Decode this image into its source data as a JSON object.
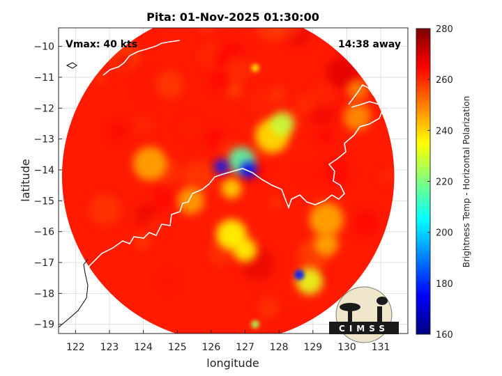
{
  "chart_data": {
    "type": "heatmap",
    "title": "Pita: 01-Nov-2025 01:30:00",
    "xlabel": "longitude",
    "ylabel": "latitude",
    "xlim": [
      121.5,
      131.8
    ],
    "ylim": [
      -19.3,
      -9.4
    ],
    "xticks": [
      122,
      123,
      124,
      125,
      126,
      127,
      128,
      129,
      130,
      131
    ],
    "yticks": [
      -10,
      -11,
      -12,
      -13,
      -14,
      -15,
      -16,
      -17,
      -18,
      -19
    ],
    "grid": true,
    "annotations": {
      "left": "Vmax: 40 kts",
      "right": "14:38 away"
    },
    "colorbar": {
      "label": "Brightness Temp - Horizontal Polarization",
      "range": [
        160,
        280
      ],
      "ticks": [
        280,
        260,
        240,
        220,
        200,
        180,
        160
      ],
      "colormap": "jet"
    },
    "swath": {
      "center": [
        126.5,
        -14.2
      ],
      "radius_deg": 4.9,
      "background_bt": 262
    },
    "features": [
      {
        "lon": 127.1,
        "lat": -14.0,
        "bt": 175,
        "radius": 0.25
      },
      {
        "lon": 126.3,
        "lat": -13.9,
        "bt": 178,
        "radius": 0.22
      },
      {
        "lon": 126.9,
        "lat": -13.7,
        "bt": 215,
        "radius": 0.4
      },
      {
        "lon": 128.6,
        "lat": -17.4,
        "bt": 178,
        "radius": 0.15
      },
      {
        "lon": 128.1,
        "lat": -12.5,
        "bt": 228,
        "radius": 0.35
      },
      {
        "lon": 127.8,
        "lat": -12.9,
        "bt": 238,
        "radius": 0.5
      },
      {
        "lon": 126.6,
        "lat": -16.1,
        "bt": 235,
        "radius": 0.45
      },
      {
        "lon": 127.0,
        "lat": -16.6,
        "bt": 236,
        "radius": 0.35
      },
      {
        "lon": 128.9,
        "lat": -17.6,
        "bt": 232,
        "radius": 0.4
      },
      {
        "lon": 129.4,
        "lat": -15.6,
        "bt": 245,
        "radius": 0.5
      },
      {
        "lon": 129.4,
        "lat": -16.4,
        "bt": 245,
        "radius": 0.35
      },
      {
        "lon": 124.2,
        "lat": -13.8,
        "bt": 245,
        "radius": 0.5
      },
      {
        "lon": 125.4,
        "lat": -15.0,
        "bt": 246,
        "radius": 0.4
      },
      {
        "lon": 130.3,
        "lat": -12.3,
        "bt": 248,
        "radius": 0.4
      },
      {
        "lon": 130.3,
        "lat": -11.4,
        "bt": 250,
        "radius": 0.3
      },
      {
        "lon": 126.6,
        "lat": -14.6,
        "bt": 240,
        "radius": 0.3
      },
      {
        "lon": 127.3,
        "lat": -19.0,
        "bt": 225,
        "radius": 0.12
      },
      {
        "lon": 127.3,
        "lat": -10.7,
        "bt": 238,
        "radius": 0.12
      }
    ]
  },
  "logo": {
    "text": "CIMSS"
  },
  "colors": {
    "coast": "#ffffff",
    "land_outline": "#000000",
    "grid": "#d9d9d9"
  }
}
